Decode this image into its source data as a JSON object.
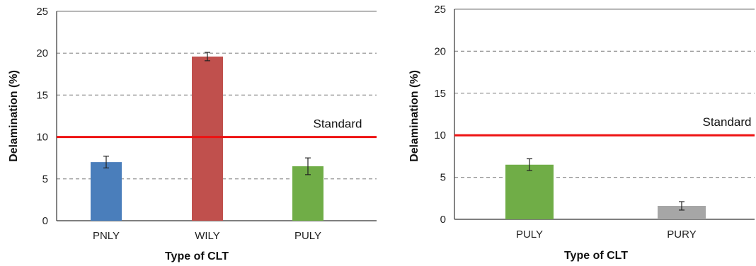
{
  "chart_data": [
    {
      "type": "bar",
      "categories": [
        "PNLY",
        "WILY",
        "PULY"
      ],
      "values": [
        7.0,
        19.6,
        6.5
      ],
      "errors": [
        0.7,
        0.5,
        1.0
      ],
      "colors": [
        "#4a7ebb",
        "#c0504d",
        "#70ad47"
      ],
      "xlabel": "Type of CLT",
      "ylabel": "Delamination (%)",
      "ylim": [
        0,
        25
      ],
      "yticks": [
        0,
        5,
        10,
        15,
        20,
        25
      ],
      "grid": true,
      "reference_line": {
        "value": 10,
        "label": "Standard",
        "color": "#ee1111"
      }
    },
    {
      "type": "bar",
      "categories": [
        "PULY",
        "PURY"
      ],
      "values": [
        6.5,
        1.6
      ],
      "errors": [
        0.7,
        0.5
      ],
      "colors": [
        "#70ad47",
        "#a6a6a6"
      ],
      "xlabel": "Type of CLT",
      "ylabel": "Delamination (%)",
      "ylim": [
        0,
        25
      ],
      "yticks": [
        0,
        5,
        10,
        15,
        20,
        25
      ],
      "grid": true,
      "reference_line": {
        "value": 10,
        "label": "Standard",
        "color": "#ee1111"
      }
    }
  ]
}
